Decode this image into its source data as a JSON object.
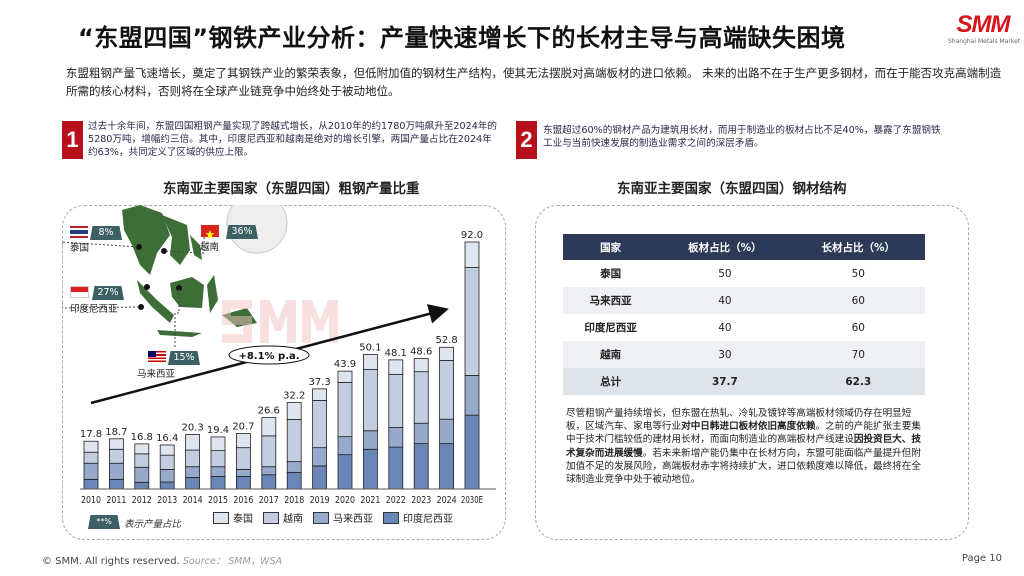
{
  "header": {
    "title": "“东盟四国”钢铁产业分析：产量快速增长下的长材主导与高端缺失困境",
    "logo_text": "SMM",
    "logo_sub": "Shanghai Metals Market"
  },
  "intro": "东盟粗钢产量飞速增长，奠定了其钢铁产业的繁荣表象，但低附加值的钢材生产结构，使其无法摆脱对高端板材的进口依赖。 未来的出路不在于生产更多钢材，而在于能否攻克高端制造所需的核心材料，否则将在全球产业链竞争中始终处于被动地位。",
  "points": [
    {
      "num": "1",
      "text": "过去十余年间，东盟四国粗钢产量实现了跨越式增长，从2010年的约1780万吨飙升至2024年的5280万吨，增幅约三倍。其中，印度尼西亚和越南是绝对的增长引擎，两国产量占比在2024年约63%，共同定义了区域的供应上限。"
    },
    {
      "num": "2",
      "text": "东盟超过60%的钢材产品为建筑用长材，而用于制造业的板材占比不足40%，暴露了东盟钢铁工业与当前快速发展的制造业需求之间的深层矛盾。"
    }
  ],
  "map": {
    "countries": [
      {
        "name": "泰国",
        "share": "8%"
      },
      {
        "name": "越南",
        "share": "36%"
      },
      {
        "name": "印度尼西亚",
        "share": "27%"
      },
      {
        "name": "马来西亚",
        "share": "15%"
      }
    ],
    "badge_legend": "**%",
    "badge_legend_text": "表示产量占比",
    "watermark": "SMM"
  },
  "chart_data": {
    "type": "bar",
    "stacked": true,
    "title": "东南亚主要国家（东盟四国）粗钢产量比重",
    "categories": [
      "2010",
      "2011",
      "2012",
      "2013",
      "2014",
      "2015",
      "2016",
      "2017",
      "2018",
      "2019",
      "2020",
      "2021",
      "2022",
      "2023",
      "2024",
      "2030E"
    ],
    "totals": [
      "17.8",
      "18.7",
      "16.8",
      "16.4",
      "20.3",
      "19.4",
      "20.7",
      "26.6",
      "32.2",
      "37.3",
      "43.9",
      "50.1",
      "48.1",
      "48.6",
      "52.8",
      "92.0"
    ],
    "series": [
      {
        "name": "印度尼西亚",
        "color": "#6a86b6",
        "values": [
          3.6,
          3.6,
          2.5,
          2.6,
          4.3,
          4.7,
          4.7,
          5.3,
          6.2,
          8.6,
          12.8,
          14.8,
          15.6,
          16.9,
          16.9,
          27.5
        ]
      },
      {
        "name": "马来西亚",
        "color": "#98aacb",
        "values": [
          6.0,
          6.0,
          5.6,
          4.7,
          4.0,
          3.6,
          2.6,
          3.0,
          4.0,
          6.8,
          6.7,
          6.9,
          7.3,
          7.6,
          9.1,
          14.8
        ]
      },
      {
        "name": "越南",
        "color": "#c3cde0",
        "values": [
          4.1,
          5.2,
          5.0,
          5.3,
          6.2,
          6.0,
          8.1,
          11.5,
          15.7,
          17.6,
          20.2,
          22.8,
          19.8,
          19.2,
          21.9,
          40.2
        ]
      },
      {
        "name": "泰国",
        "color": "#dfe5ef",
        "values": [
          4.1,
          3.9,
          3.7,
          3.8,
          5.8,
          5.1,
          5.3,
          6.8,
          6.3,
          4.3,
          4.2,
          5.6,
          5.4,
          4.9,
          4.9,
          9.5
        ]
      }
    ],
    "legend_order": [
      "泰国",
      "越南",
      "马来西亚",
      "印度尼西亚"
    ],
    "legend_placement": "bottom",
    "annotation": "+8.1% p.a.",
    "ylim": [
      0,
      92
    ]
  },
  "table": {
    "title": "东南亚主要国家（东盟四国）钢材结构",
    "headers": [
      "国家",
      "板材占比（%）",
      "长材占比（%）"
    ],
    "rows": [
      [
        "泰国",
        "50",
        "50"
      ],
      [
        "马来西亚",
        "40",
        "60"
      ],
      [
        "印度尼西亚",
        "40",
        "60"
      ],
      [
        "越南",
        "30",
        "70"
      ]
    ],
    "total": [
      "总计",
      "37.7",
      "62.3"
    ]
  },
  "analysis": {
    "t1": "尽管粗钢产量持续增长，但东盟在热轧、冷轧及镀锌等高端板材领域仍存在明显短板，区域汽车、家电等行业",
    "b1": "对中日韩进口板材依旧高度依赖",
    "t2": "。之前的产能扩张主要集中于技术门槛较低的建材用长材，而面向制造业的高端板材产线建设",
    "b2": "因投资巨大、技术复杂而进展缓慢",
    "t3": "。若未来新增产能仍集中在长材方向，东盟可能面临产量提升但附加值不足的发展风险，高端板材赤字将持续扩大，进口依赖度难以降低，最终将在全球制造业竞争中处于被动地位。"
  },
  "footer": {
    "copyright": "© SMM. All rights reserved.",
    "source": "Source： SMM，WSA",
    "page": "Page 10"
  }
}
